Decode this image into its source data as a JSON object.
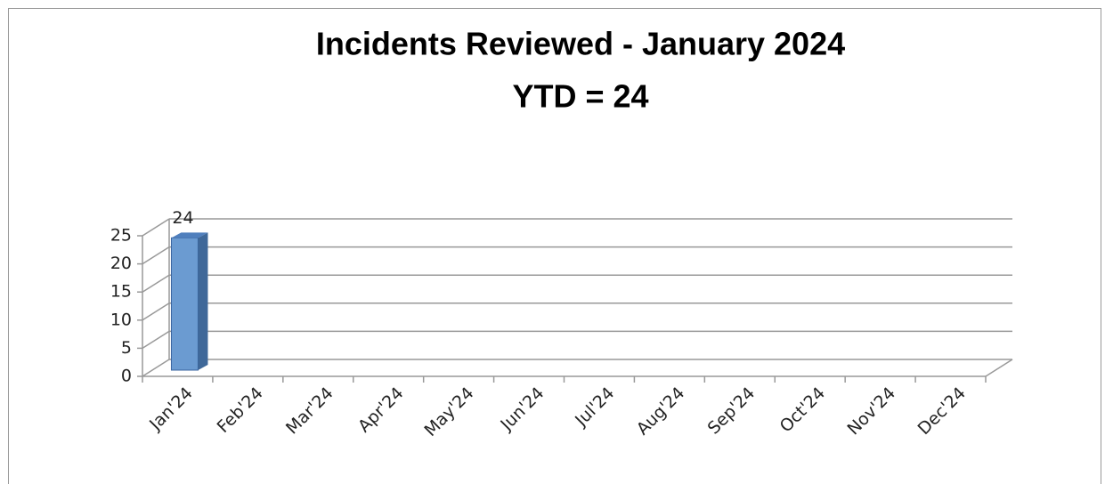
{
  "chart_data": {
    "type": "bar3d",
    "title": "Incidents Reviewed - January 2024",
    "subtitle": "YTD = 24",
    "categories": [
      "Jan'24",
      "Feb'24",
      "Mar'24",
      "Apr'24",
      "May'24",
      "Jun'24",
      "Jul'24",
      "Aug'24",
      "Sep'24",
      "Oct'24",
      "Nov'24",
      "Dec'24"
    ],
    "values": [
      24,
      null,
      null,
      null,
      null,
      null,
      null,
      null,
      null,
      null,
      null,
      null
    ],
    "color": "#6b9bd1",
    "ylim": [
      0,
      25
    ],
    "yticks": [
      0,
      5,
      10,
      15,
      20,
      25
    ],
    "grid": true
  }
}
